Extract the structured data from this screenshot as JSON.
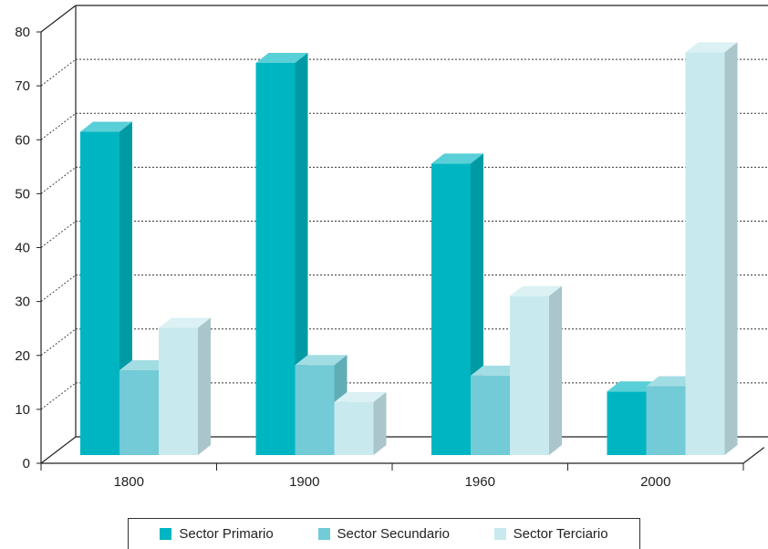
{
  "chart_data": {
    "type": "bar",
    "categories": [
      "1800",
      "1900",
      "1960",
      "2000"
    ],
    "series": [
      {
        "name": "Sector Primario",
        "values": [
          61,
          74,
          55,
          12
        ],
        "color": "#00b5c2"
      },
      {
        "name": "Sector Secundario",
        "values": [
          16,
          17,
          15,
          13
        ],
        "color": "#72cbd6"
      },
      {
        "name": "Sector Terciario",
        "values": [
          24,
          10,
          30,
          76
        ],
        "color": "#c8e9ee"
      }
    ],
    "yticks": [
      "0",
      "10",
      "20",
      "30",
      "40",
      "50",
      "60",
      "70",
      "80"
    ],
    "ylim": [
      0,
      80
    ],
    "grid": true,
    "gridStyle": "dotted",
    "legend_position": "bottom",
    "style": "3d"
  }
}
